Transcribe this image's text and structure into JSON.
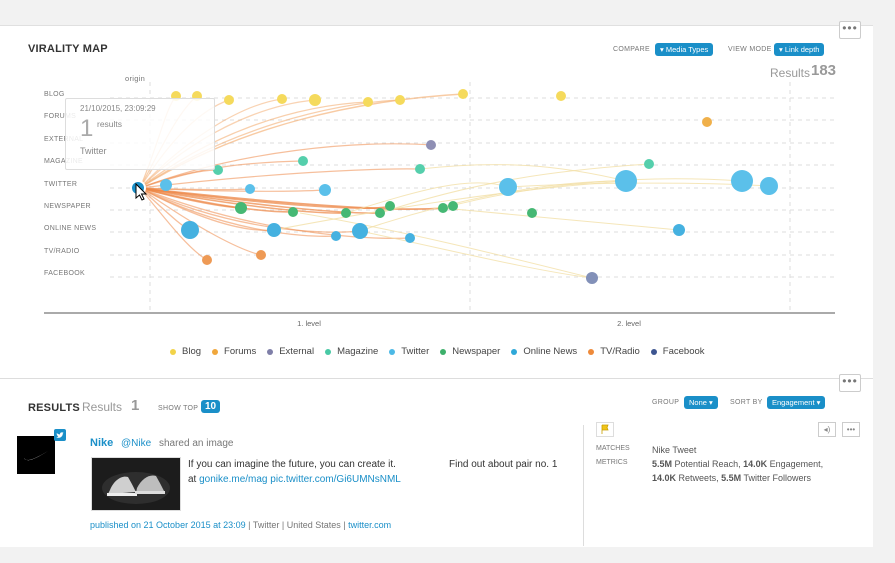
{
  "virality": {
    "title": "VIRALITY MAP",
    "compare_label": "COMPARE",
    "compare_value": "Media Types",
    "viewmode_label": "VIEW MODE",
    "viewmode_value": "Link depth",
    "results_label": "Results",
    "results_count": "183",
    "origin_label": "origin",
    "rows": [
      "BLOG",
      "FORUMS",
      "EXTERNAL",
      "MAGAZINE",
      "TWITTER",
      "NEWSPAPER",
      "ONLINE NEWS",
      "TV/RADIO",
      "FACEBOOK"
    ],
    "levels": [
      "1. level",
      "2. level"
    ],
    "tooltip": {
      "date": "21/10/2015, 23:09:29",
      "count": "1",
      "count_label": "results",
      "name": "Twitter"
    },
    "legend": [
      {
        "label": "Blog",
        "color": "#f2d349"
      },
      {
        "label": "Forums",
        "color": "#f0a73c"
      },
      {
        "label": "External",
        "color": "#7f7fa8"
      },
      {
        "label": "Magazine",
        "color": "#48c9a5"
      },
      {
        "label": "Twitter",
        "color": "#4cb9e6"
      },
      {
        "label": "Newspaper",
        "color": "#3db06b"
      },
      {
        "label": "Online News",
        "color": "#2ea8d8"
      },
      {
        "label": "TV/Radio",
        "color": "#ee8a3a"
      },
      {
        "label": "Facebook",
        "color": "#3d5590"
      }
    ]
  },
  "results": {
    "title": "RESULTS",
    "results_label": "Results",
    "results_count": "1",
    "show_top_label": "SHOW TOP",
    "show_top_value": "10",
    "group_label": "GROUP",
    "group_value": "None",
    "sort_label": "SORT BY",
    "sort_value": "Engagement",
    "post": {
      "author": "Nike",
      "handle": "@Nike",
      "action": "shared an image",
      "text_line1": "If you can imagine the future, you can create it.",
      "text_at": "at",
      "link1": "gonike.me/mag",
      "link2": "pic.twitter.com/Gi6UMNsNML",
      "extra": "Find out about pair no. 1",
      "published": "published on 21 October 2015 at 23:09",
      "source": "Twitter",
      "country": "United States",
      "domain": "twitter.com",
      "sep": "|"
    },
    "meta": {
      "matches_label": "MATCHES",
      "matches_value": "Nike Tweet",
      "metrics_label": "METRICS",
      "metrics_line1_a": "5.5M",
      "metrics_line1_b": "Potential Reach,",
      "metrics_line1_c": "14.0K",
      "metrics_line1_d": "Engagement,",
      "metrics_line2_a": "14.0K",
      "metrics_line2_b": "Retweets,",
      "metrics_line2_c": "5.5M",
      "metrics_line2_d": "Twitter Followers"
    }
  }
}
